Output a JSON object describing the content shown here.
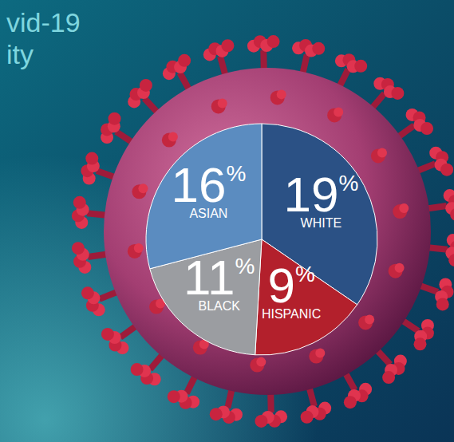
{
  "chart_data": {
    "type": "pie",
    "title": "vid-19",
    "subtitle": "ity",
    "categories": [
      "WHITE",
      "HISPANIC",
      "BLACK",
      "ASIAN"
    ],
    "values": [
      19,
      9,
      11,
      16
    ],
    "value_labels": [
      "19%",
      "9%",
      "11%",
      "16%"
    ],
    "colors": [
      "#2b5185",
      "#b3202c",
      "#9b9da1",
      "#5b8cc0"
    ],
    "data_labels": true
  }
}
